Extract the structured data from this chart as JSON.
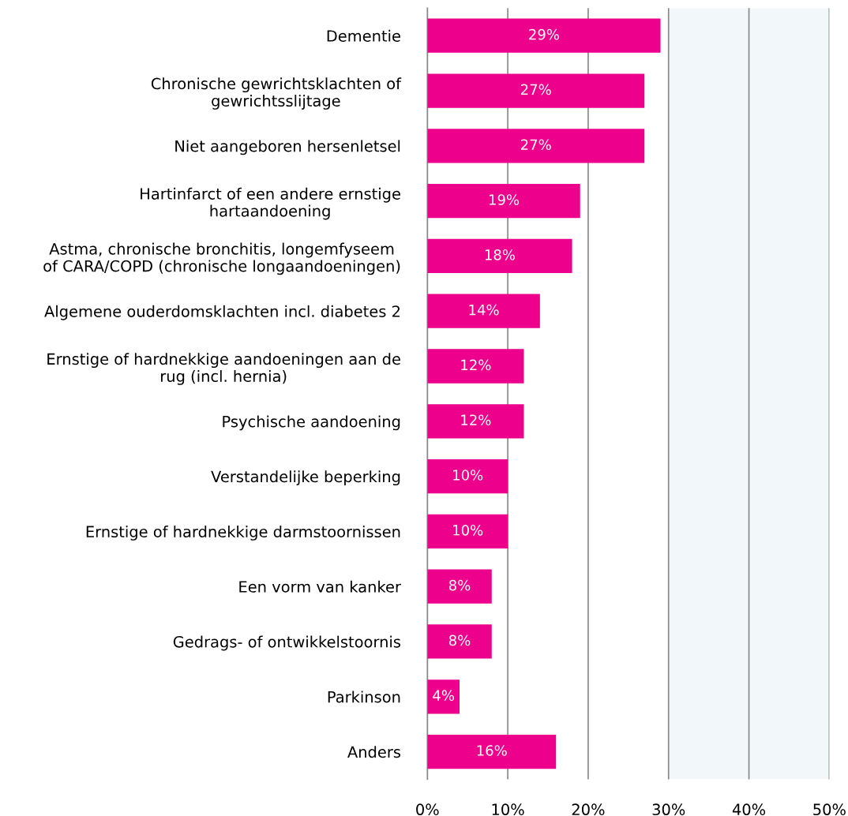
{
  "chart_data": {
    "type": "bar",
    "orientation": "horizontal",
    "categories": [
      "Dementie",
      "Chronische gewrichtsklachten of\ngewrichtsslijtage",
      "Niet aangeboren hersenletsel",
      "Hartinfarct of een andere ernstige\nhartaandoening",
      "Astma, chronische bronchitis, longemfyseem\nof CARA/COPD (chronische longaandoeningen)",
      "Algemene ouderdomsklachten incl. diabetes 2",
      "Ernstige of hardnekkige aandoeningen aan de\nrug (incl. hernia)",
      "Psychische aandoening",
      "Verstandelijke beperking",
      "Ernstige of hardnekkige darmstoornissen",
      "Een vorm van kanker",
      "Gedrags- of ontwikkelstoornis",
      "Parkinson",
      "Anders"
    ],
    "values": [
      29,
      27,
      27,
      19,
      18,
      14,
      12,
      12,
      10,
      10,
      8,
      8,
      4,
      16
    ],
    "value_labels": [
      "29%",
      "27%",
      "27%",
      "19%",
      "18%",
      "14%",
      "12%",
      "12%",
      "10%",
      "10%",
      "8%",
      "8%",
      "4%",
      "16%"
    ],
    "color": "#ec008c",
    "xlim": [
      0,
      50
    ],
    "xticks": [
      {
        "value": 0,
        "label": "0%"
      },
      {
        "value": 10,
        "label": "10%"
      },
      {
        "value": 20,
        "label": "20%"
      },
      {
        "value": 30,
        "label": "30%"
      },
      {
        "value": 40,
        "label": "40%"
      },
      {
        "value": 50,
        "label": "50%"
      }
    ],
    "grid": "x",
    "bands": [
      {
        "axis": "x",
        "from": 30,
        "to": 50,
        "color": "#f2f7fa"
      }
    ]
  }
}
